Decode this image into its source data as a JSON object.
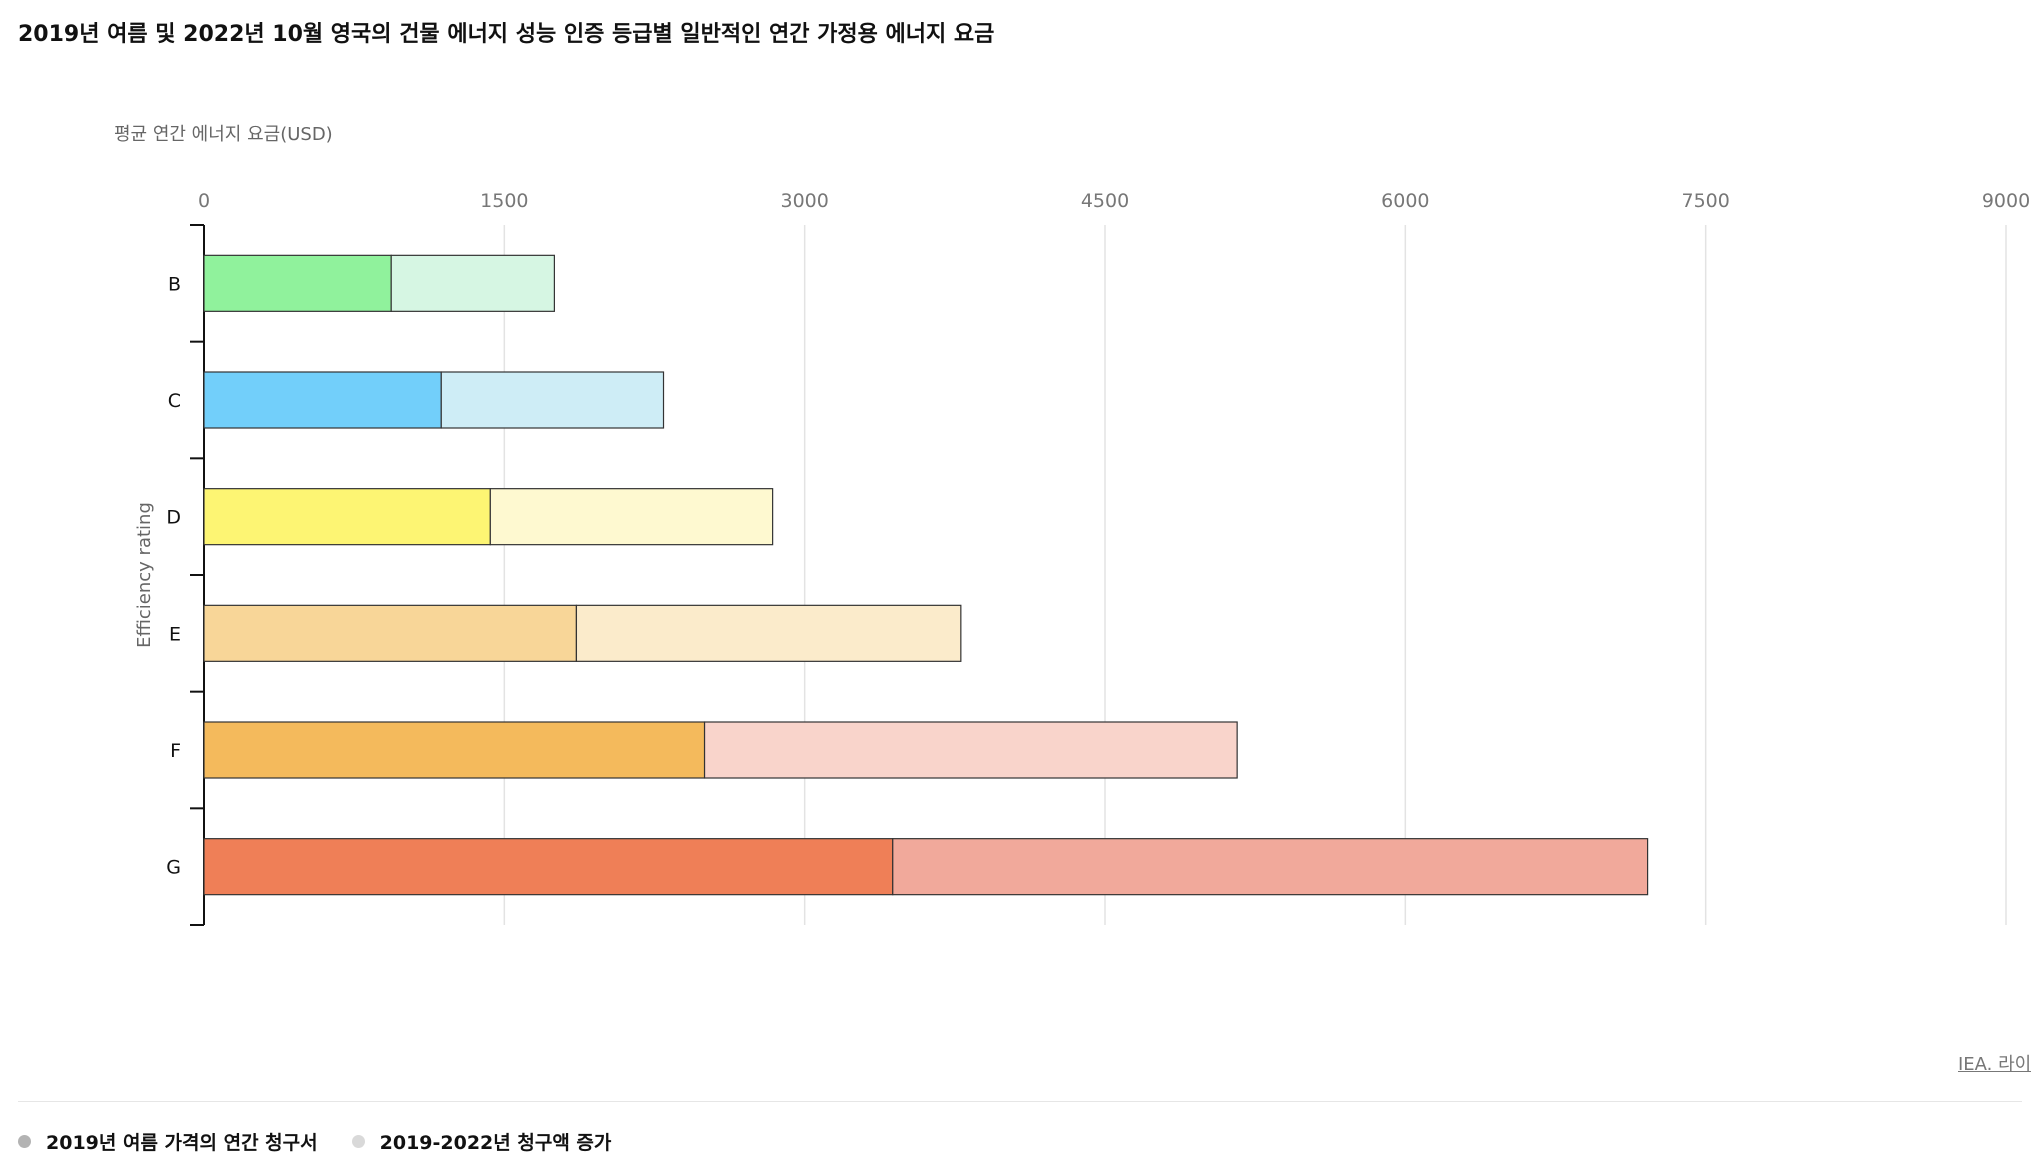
{
  "title": "2019년 여름 및 2022년 10월 영국의 건물 에너지 성능 인증 등급별 일반적인 연간 가정용 에너지 요금",
  "source": "IEA. 라이",
  "legend": {
    "item1": "2019년 여름 가격의 연간 청구서",
    "item2": "2019-2022년 청구액 증가",
    "item1_color": "#b3b3b3",
    "item2_color": "#d9d9d9"
  },
  "chart_data": {
    "type": "bar",
    "orientation": "horizontal",
    "stacked": true,
    "xlabel": "평균 연간 에너지 요금(USD)",
    "ylabel": "Efficiency rating",
    "xlim": [
      0,
      9000
    ],
    "xticks": [
      "0",
      "1500",
      "3000",
      "4500",
      "6000",
      "7500",
      "9000"
    ],
    "grid": "vertical",
    "categories": [
      "B",
      "C",
      "D",
      "E",
      "F",
      "G"
    ],
    "series": [
      {
        "name": "2019년 여름 가격의 연간 청구서",
        "values": [
          935,
          1185,
          1430,
          1860,
          2500,
          3440
        ],
        "colors": [
          "#90f29c",
          "#72cffa",
          "#fdf573",
          "#f8d698",
          "#f4ba5c",
          "#ef7f57"
        ]
      },
      {
        "name": "2019-2022년 청구액 증가",
        "values": [
          815,
          1110,
          1410,
          1920,
          2660,
          3770
        ],
        "colors": [
          "#d6f6e3",
          "#ceedf6",
          "#fef9d0",
          "#fbebcb",
          "#f9d4cb",
          "#f1a99b"
        ]
      }
    ]
  }
}
